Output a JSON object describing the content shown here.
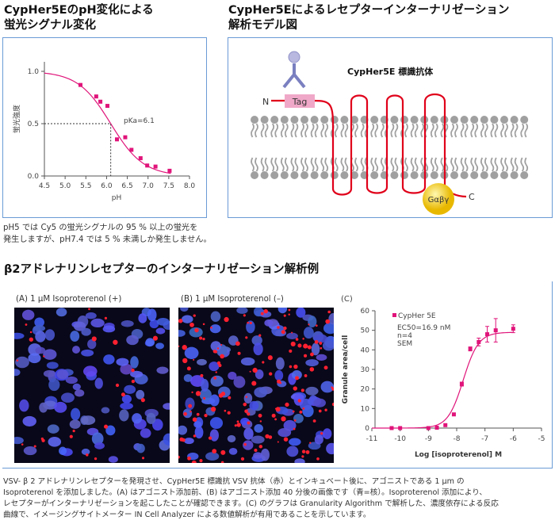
{
  "section1": {
    "title_line1": "CypHer5EのpH変化による",
    "title_line2": "蛍光シグナル変化",
    "caption_line1": "pH5 では Cy5 の蛍光シグナルの 95 % 以上の蛍光を",
    "caption_line2": "発生しますが、pH7.4 では 5 % 未満しか発生しません。"
  },
  "section2": {
    "title_line1": "CypHer5Eによるレセプターインターナリゼーション",
    "title_line2": "解析モデル図",
    "antibody_label": "CypHer5E 標識抗体",
    "tag_label": "Tag",
    "n_label": "N",
    "c_label": "C",
    "g_protein_label": "Gαβγ"
  },
  "section3": {
    "title": "β2アドレナリンレセプターのインターナリゼーション解析例",
    "panel_a_label": "(A)  1 μM Isoproterenol (+)",
    "panel_b_label": "(B)  1 μM Isoproterenol (–)",
    "panel_c_label": "(C)",
    "caption_lines": [
      "VSV- β 2 アドレナリンレセプターを発現させ、CypHer5E 標識抗 VSV 抗体（赤）とインキュベート後に、アゴニストである 1 μm の",
      "Isoproterenol を添加しました。(A) はアゴニスト添加前、(B) はアゴニスト添加 40 分後の画像です（青=核）。Isoproterenol 添加により、",
      "レセプターがインターナリゼーションを起こしたことが確認できます。(C) のグラフは Granularity Algorithm で解析した、濃度依存による反応",
      "曲線で、イメージングサイトメーター IN Cell Analyzer による数値解析が有用であることを示しています。"
    ]
  },
  "colors": {
    "accent": "#e0147a",
    "border": "#6a9bd6",
    "membrane": "#a0a0a0",
    "receptor": "#e0001a",
    "tag": "#f0a8c8",
    "antibody": "#7a80c0"
  },
  "chart_data": [
    {
      "type": "scatter",
      "title": "",
      "xlabel": "pH",
      "ylabel": "蛍光強度",
      "xlim": [
        4.5,
        8.0
      ],
      "ylim": [
        0,
        1.0
      ],
      "xticks": [
        "4.5",
        "5.0",
        "5.5",
        "6.0",
        "6.5",
        "7.0",
        "7.5",
        "8.0"
      ],
      "yticks": [
        "0.0",
        "0.5",
        "1.0"
      ],
      "annotation": "pKa=6.1",
      "pKa": 6.1,
      "x": [
        5.37,
        5.75,
        5.85,
        6.02,
        6.25,
        6.45,
        6.6,
        6.82,
        6.98,
        7.18,
        7.52
      ],
      "y": [
        0.87,
        0.76,
        0.71,
        0.67,
        0.35,
        0.37,
        0.25,
        0.17,
        0.1,
        0.09,
        0.05
      ],
      "fit": "sigmoid"
    },
    {
      "type": "scatter",
      "xlabel": "Log [isoproterenol] M",
      "ylabel": "Granule area/cell",
      "xlim": [
        -11,
        -5
      ],
      "ylim": [
        0,
        60
      ],
      "xticks": [
        "-11",
        "-10",
        "-9",
        "-8",
        "-7",
        "-6",
        "-5"
      ],
      "yticks": [
        "0",
        "10",
        "20",
        "30",
        "40",
        "50",
        "60"
      ],
      "legend": "CypHer 5E",
      "legend_placement": "top-left",
      "annotations": [
        "EC50=16.9 nM",
        "n=4",
        "SEM"
      ],
      "x": [
        -10.3,
        -10,
        -9,
        -8.7,
        -8.4,
        -8.1,
        -7.82,
        -7.52,
        -7.22,
        -6.92,
        -6.62,
        -6
      ],
      "y": [
        0,
        0,
        0,
        0.2,
        1.5,
        7,
        22.5,
        40.5,
        44,
        48,
        50,
        50.8
      ],
      "err": [
        0,
        0,
        0,
        0,
        0,
        0,
        1,
        1,
        2,
        4,
        6,
        2
      ],
      "fit": {
        "bottom": 0,
        "top": 49,
        "logEC50": -7.77,
        "hill": 1.6
      }
    }
  ]
}
